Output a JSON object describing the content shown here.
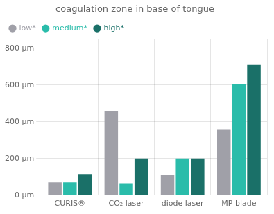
{
  "chart_data": {
    "type": "bar",
    "title": "coagulation zone in base of tongue",
    "categories": [
      "CURIS®",
      "CO₂ laser",
      "diode laser",
      "MP blade"
    ],
    "series": [
      {
        "name": "low*",
        "color": "#a0a0a8",
        "values": [
          70,
          460,
          110,
          360
        ]
      },
      {
        "name": "medium*",
        "color": "#2abcaa",
        "values": [
          70,
          65,
          200,
          605
        ]
      },
      {
        "name": "high*",
        "color": "#1a7068",
        "values": [
          115,
          200,
          200,
          710
        ]
      }
    ],
    "ylim": [
      0,
      850
    ],
    "yticks": [
      {
        "value": 0,
        "label": "0 μm"
      },
      {
        "value": 200,
        "label": "200 μm"
      },
      {
        "value": 400,
        "label": "400 μm"
      },
      {
        "value": 600,
        "label": "600 μm"
      },
      {
        "value": 800,
        "label": "800 μm"
      }
    ],
    "grid": true,
    "legend": "upper left"
  }
}
